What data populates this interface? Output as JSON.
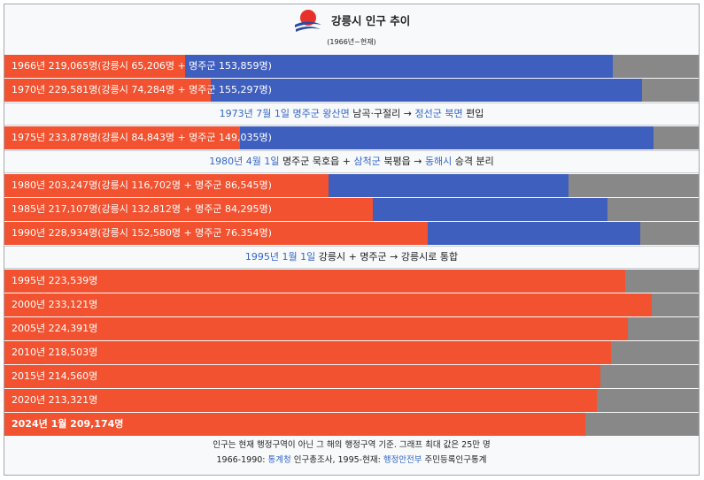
{
  "header": {
    "title": "강릉시 인구 추이",
    "subtitle": "(1966년~현재)"
  },
  "colors": {
    "gangneung": "#f25230",
    "myeongju": "#3f5fbf",
    "remainder": "#888888",
    "link": "#3366cc"
  },
  "chart_data": {
    "type": "bar",
    "orientation": "horizontal",
    "stacked": true,
    "max_value": 250000,
    "rows": [
      {
        "kind": "bar",
        "label": "1966년 219,065명(강릉시 65,206명 + 명주군 153,859명)",
        "total": 219065,
        "gangneung": 65206,
        "myeongju": 153859
      },
      {
        "kind": "bar",
        "label": "1970년 229,581명(강릉시 74,284명 + 명주군 155,297명)",
        "total": 229581,
        "gangneung": 74284,
        "myeongju": 155297
      },
      {
        "kind": "note",
        "parts": [
          {
            "text": "1973년 7월 1일",
            "link": true
          },
          {
            "text": " "
          },
          {
            "text": "명주군",
            "link": true
          },
          {
            "text": " "
          },
          {
            "text": "왕산면",
            "link": true
          },
          {
            "text": " 남곡·구절리 → "
          },
          {
            "text": "정선군",
            "link": true
          },
          {
            "text": " "
          },
          {
            "text": "북면",
            "link": true
          },
          {
            "text": " 편입"
          }
        ]
      },
      {
        "kind": "bar",
        "label": "1975년 233,878명(강릉시 84,843명 + 명주군 149,035명)",
        "total": 233878,
        "gangneung": 84843,
        "myeongju": 149035
      },
      {
        "kind": "note",
        "parts": [
          {
            "text": "1980년 4월 1일",
            "link": true
          },
          {
            "text": " 명주군 묵호읍 + "
          },
          {
            "text": "삼척군",
            "link": true
          },
          {
            "text": " 북평읍 → "
          },
          {
            "text": "동해시",
            "link": true
          },
          {
            "text": " 승격 분리"
          }
        ]
      },
      {
        "kind": "bar",
        "label": "1980년 203,247명(강릉시 116,702명 + 명주군 86,545명)",
        "total": 203247,
        "gangneung": 116702,
        "myeongju": 86545
      },
      {
        "kind": "bar",
        "label": "1985년 217,107명(강릉시 132,812명 + 명주군 84,295명)",
        "total": 217107,
        "gangneung": 132812,
        "myeongju": 84295
      },
      {
        "kind": "bar",
        "label": "1990년 228,934명(강릉시 152,580명 + 명주군 76.354명)",
        "total": 228934,
        "gangneung": 152580,
        "myeongju": 76354
      },
      {
        "kind": "note",
        "parts": [
          {
            "text": "1995년 1월 1일",
            "link": true
          },
          {
            "text": " 강릉시 + 명주군 → 강릉시로 통합"
          }
        ]
      },
      {
        "kind": "bar",
        "label": "1995년 223,539명",
        "total": 223539,
        "gangneung": 223539,
        "myeongju": 0
      },
      {
        "kind": "bar",
        "label": "2000년 233,121명",
        "total": 233121,
        "gangneung": 233121,
        "myeongju": 0
      },
      {
        "kind": "bar",
        "label": "2005년 224,391명",
        "total": 224391,
        "gangneung": 224391,
        "myeongju": 0
      },
      {
        "kind": "bar",
        "label": "2010년 218,503명",
        "total": 218503,
        "gangneung": 218503,
        "myeongju": 0
      },
      {
        "kind": "bar",
        "label": "2015년 214,560명",
        "total": 214560,
        "gangneung": 214560,
        "myeongju": 0
      },
      {
        "kind": "bar",
        "label": "2020년 213,321명",
        "total": 213321,
        "gangneung": 213321,
        "myeongju": 0
      },
      {
        "kind": "bar",
        "label": "2024년 1월 209,174명",
        "total": 209174,
        "gangneung": 209174,
        "myeongju": 0,
        "bold": true
      }
    ]
  },
  "footer": {
    "line1": "인구는 현재 행정구역이 아닌 그 해의 행정구역 기준. 그래프 최대 값은 25만 명",
    "line2_parts": [
      {
        "text": "1966-1990: "
      },
      {
        "text": "통계청",
        "link": true
      },
      {
        "text": " 인구총조사, 1995-현재: "
      },
      {
        "text": "행정안전부",
        "link": true
      },
      {
        "text": " 주민등록인구통계"
      }
    ]
  }
}
